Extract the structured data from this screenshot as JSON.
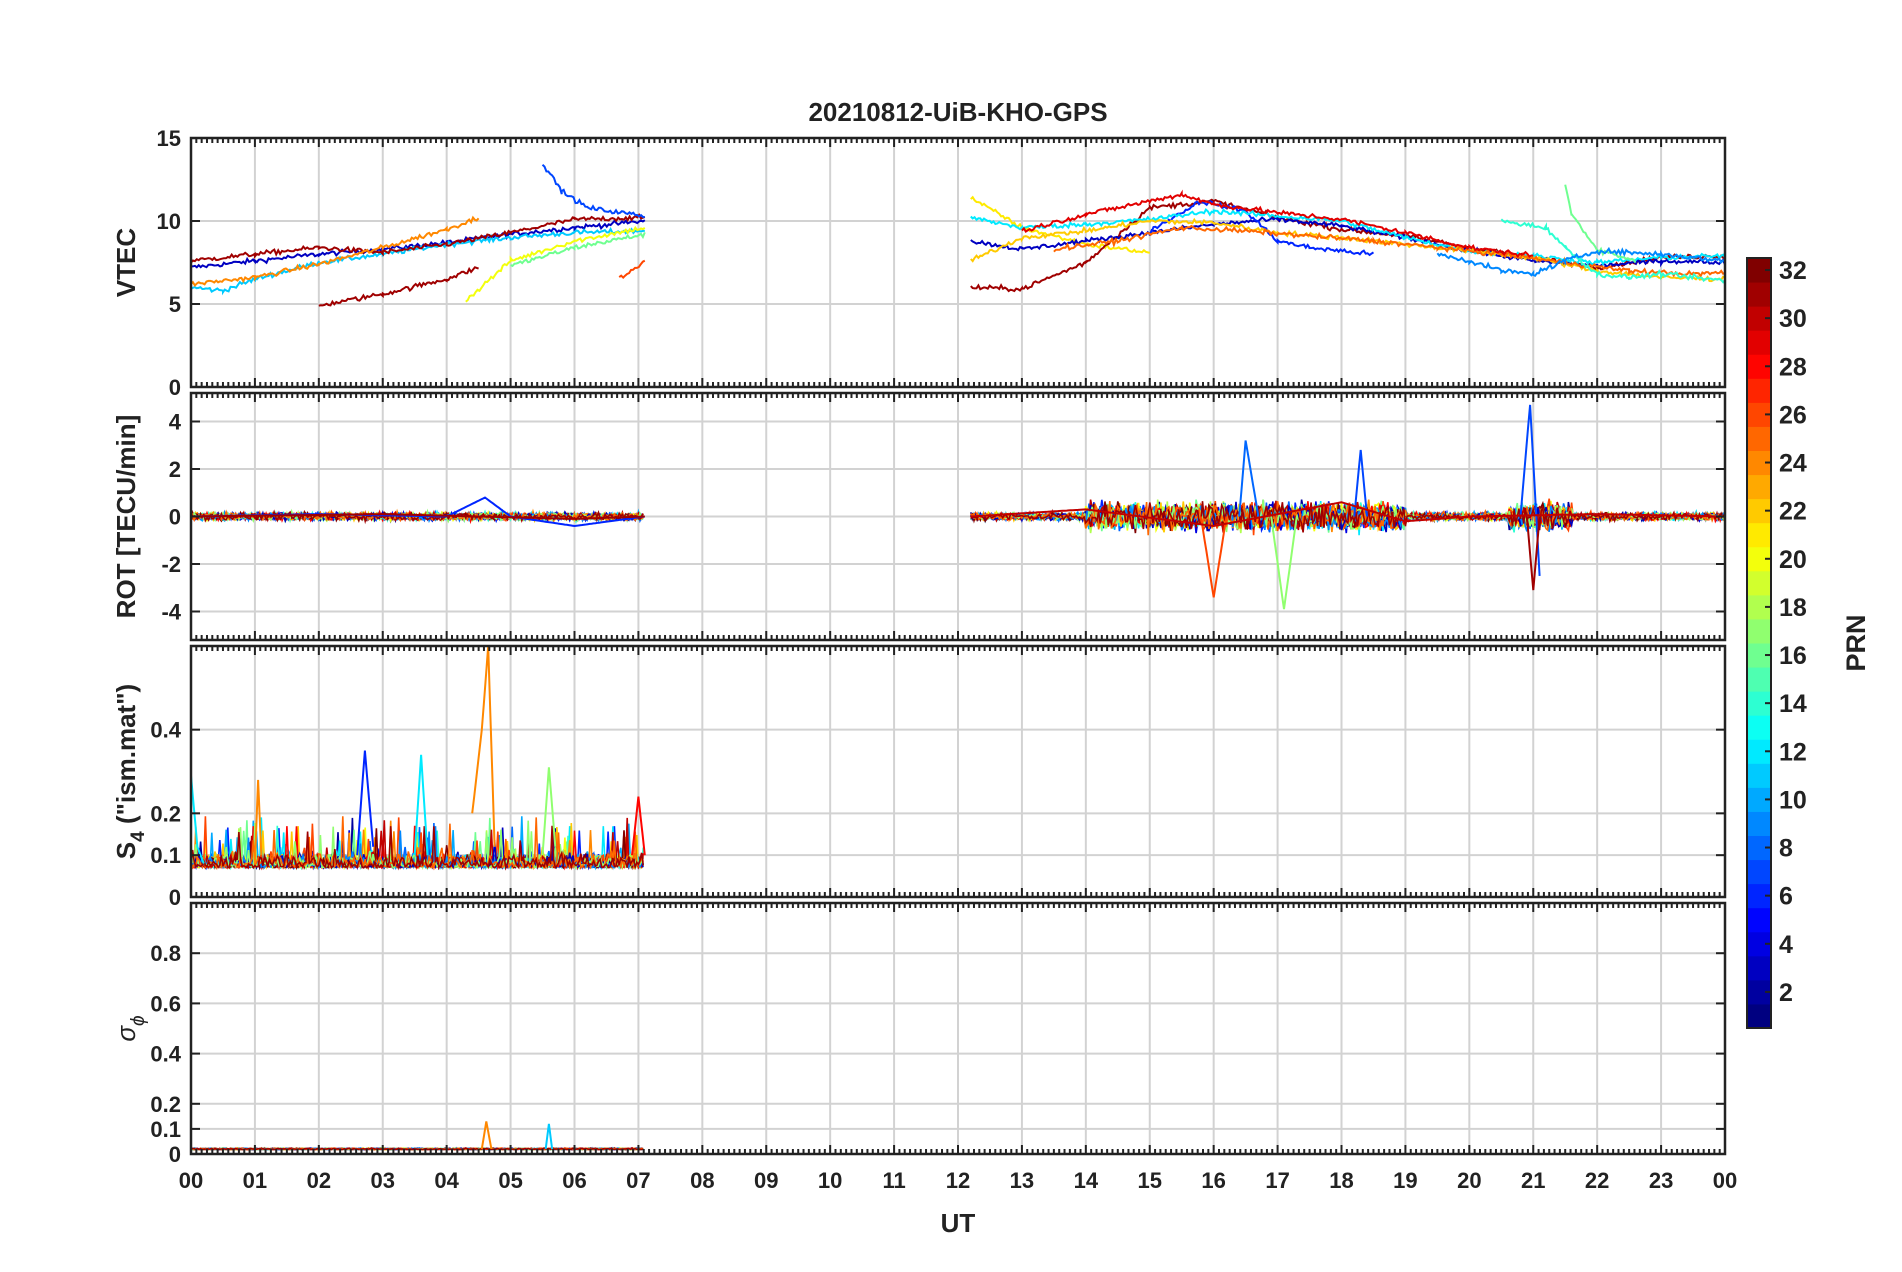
{
  "figure": {
    "title": "20210812-UiB-KHO-GPS",
    "xlabel": "UT",
    "x_ticks": [
      "00",
      "01",
      "02",
      "03",
      "04",
      "05",
      "06",
      "07",
      "08",
      "09",
      "10",
      "11",
      "12",
      "13",
      "14",
      "15",
      "16",
      "17",
      "18",
      "19",
      "20",
      "21",
      "22",
      "23",
      "00"
    ]
  },
  "colorbar": {
    "label": "PRN",
    "colormap": "jet",
    "range": [
      1,
      32
    ],
    "ticks": [
      "2",
      "4",
      "6",
      "8",
      "10",
      "12",
      "14",
      "16",
      "18",
      "20",
      "22",
      "24",
      "26",
      "28",
      "30",
      "32"
    ]
  },
  "chart_data": [
    {
      "type": "line",
      "panel": "vtec",
      "ylabel": "VTEC",
      "ylim": [
        0,
        15
      ],
      "y_ticks": [
        "0",
        "5",
        "10",
        "15"
      ],
      "grid": true,
      "data_coverage_ut_hours": [
        [
          0,
          7.1
        ],
        [
          12.2,
          24
        ]
      ],
      "series": [
        {
          "prn": 3,
          "x": [
            0,
            1,
            2,
            3,
            4,
            5,
            6,
            7.1
          ],
          "y": [
            7.2,
            7.6,
            8.0,
            8.3,
            8.7,
            9.2,
            9.6,
            10.0
          ]
        },
        {
          "prn": 11,
          "x": [
            0,
            0.5,
            1,
            2,
            3,
            4,
            5,
            6,
            7.1
          ],
          "y": [
            6.0,
            5.8,
            6.5,
            7.5,
            8.0,
            8.6,
            9.0,
            9.3,
            9.4
          ]
        },
        {
          "prn": 31,
          "x": [
            0,
            1,
            2,
            3,
            4,
            5,
            6,
            7.1
          ],
          "y": [
            7.6,
            8.0,
            8.4,
            8.1,
            8.6,
            9.3,
            10.1,
            10.2
          ]
        },
        {
          "prn": 31,
          "x": [
            2,
            3,
            4,
            4.5
          ],
          "y": [
            4.9,
            5.6,
            6.5,
            7.2
          ]
        },
        {
          "prn": 24,
          "x": [
            0,
            1,
            2,
            3,
            4,
            4.5
          ],
          "y": [
            6.2,
            6.6,
            7.4,
            8.4,
            9.5,
            10.2
          ]
        },
        {
          "prn": 7,
          "x": [
            5.5,
            5.8,
            6.2,
            7.1
          ],
          "y": [
            13.5,
            11.8,
            10.8,
            10.3
          ]
        },
        {
          "prn": 20,
          "x": [
            4.3,
            5,
            6,
            7.1
          ],
          "y": [
            5.2,
            7.6,
            8.8,
            9.6
          ]
        },
        {
          "prn": 16,
          "x": [
            5,
            6,
            7.1
          ],
          "y": [
            7.3,
            8.4,
            9.2
          ]
        },
        {
          "prn": 26,
          "x": [
            6.7,
            7.1
          ],
          "y": [
            6.5,
            7.6
          ]
        },
        {
          "prn": 21,
          "x": [
            12.2,
            13,
            14,
            15
          ],
          "y": [
            11.4,
            9.6,
            8.6,
            8.1
          ]
        },
        {
          "prn": 31,
          "x": [
            12.2,
            13,
            14,
            15,
            16,
            17,
            18,
            19,
            20,
            21,
            22,
            23,
            24
          ],
          "y": [
            6.0,
            5.9,
            7.5,
            10.8,
            11.2,
            10.2,
            9.5,
            9.1,
            8.4,
            7.8,
            7.2,
            7.8,
            7.9
          ]
        },
        {
          "prn": 3,
          "x": [
            12.2,
            13,
            14,
            15,
            16,
            17,
            18,
            19,
            20,
            21,
            22,
            23,
            24
          ],
          "y": [
            8.8,
            8.3,
            8.8,
            9.3,
            9.8,
            10.1,
            9.7,
            9.0,
            8.2,
            7.6,
            7.3,
            7.6,
            7.5
          ]
        },
        {
          "prn": 6,
          "x": [
            15,
            15.8,
            16.5,
            17,
            17.5,
            18.5
          ],
          "y": [
            9.4,
            11.2,
            10.6,
            8.8,
            8.4,
            8.0
          ]
        },
        {
          "prn": 12,
          "x": [
            12.2,
            13,
            14,
            15,
            16,
            17,
            18,
            19,
            20,
            21,
            22,
            23,
            24
          ],
          "y": [
            10.2,
            9.6,
            9.8,
            10.1,
            10.6,
            10.3,
            10.0,
            9.0,
            8.2,
            7.9,
            7.5,
            7.8,
            7.9
          ]
        },
        {
          "prn": 22,
          "x": [
            12.2,
            13,
            14,
            15,
            16,
            17,
            18,
            19,
            20,
            21,
            22,
            23,
            24
          ],
          "y": [
            7.6,
            9.0,
            9.4,
            10.0,
            9.9,
            9.3,
            9.0,
            8.6,
            8.2,
            7.8,
            7.0,
            6.6,
            6.5
          ]
        },
        {
          "prn": 25,
          "x": [
            13.5,
            14.5,
            15.5,
            16.5,
            17.5,
            18.5,
            19.5,
            20.5,
            21.5,
            22.5,
            23.5,
            24
          ],
          "y": [
            8.3,
            8.8,
            9.6,
            9.4,
            9.1,
            8.8,
            8.4,
            8.0,
            7.5,
            7.0,
            6.8,
            6.9
          ]
        },
        {
          "prn": 14,
          "x": [
            20.5,
            21.2,
            21.5,
            22,
            22.5,
            23,
            24
          ],
          "y": [
            10.0,
            9.6,
            8.4,
            6.8,
            6.6,
            6.8,
            6.4
          ]
        },
        {
          "prn": 16,
          "x": [
            21.5,
            21.6,
            22,
            22.6
          ],
          "y": [
            12.2,
            10.4,
            8.3,
            7.6
          ]
        },
        {
          "prn": 29,
          "x": [
            13,
            14,
            15,
            15.5,
            16,
            17,
            18,
            19,
            20,
            21
          ],
          "y": [
            9.4,
            10.4,
            11.2,
            11.6,
            11.0,
            10.5,
            10.1,
            9.3,
            8.4,
            7.9
          ]
        },
        {
          "prn": 9,
          "x": [
            19.5,
            20,
            20.5,
            21,
            21.5,
            22,
            23,
            24
          ],
          "y": [
            8.0,
            7.6,
            7.0,
            6.8,
            7.6,
            8.2,
            8.0,
            7.6
          ]
        }
      ]
    },
    {
      "type": "line",
      "panel": "rot",
      "ylabel": "ROT [TECU/min]",
      "ylim": [
        -5.2,
        5.2
      ],
      "y_ticks": [
        "-4",
        "-2",
        "0",
        "2",
        "4"
      ],
      "grid": true,
      "data_coverage_ut_hours": [
        [
          0,
          7.1
        ],
        [
          12.2,
          24
        ]
      ],
      "series": [
        {
          "prn": 6,
          "x": [
            0,
            2,
            4,
            4.6,
            5,
            6,
            7.1
          ],
          "y": [
            0,
            0.1,
            0,
            0.8,
            0,
            -0.4,
            0
          ]
        },
        {
          "prn": 31,
          "x": [
            0,
            3,
            6,
            7.1
          ],
          "y": [
            0,
            0.1,
            -0.1,
            0
          ]
        },
        {
          "prn": 26,
          "x": [
            15.8,
            16,
            16.2
          ],
          "y": [
            0,
            -3.4,
            0
          ]
        },
        {
          "prn": 17,
          "x": [
            16.9,
            17.1,
            17.3
          ],
          "y": [
            0,
            -3.9,
            0
          ]
        },
        {
          "prn": 8,
          "x": [
            16.4,
            16.5,
            16.7
          ],
          "y": [
            0,
            3.2,
            0
          ]
        },
        {
          "prn": 7,
          "x": [
            18.2,
            18.3,
            18.4
          ],
          "y": [
            0,
            2.8,
            0
          ]
        },
        {
          "prn": 7,
          "x": [
            20.8,
            20.95,
            21.1
          ],
          "y": [
            0,
            4.7,
            -2.5
          ]
        },
        {
          "prn": 31,
          "x": [
            20.9,
            21.0,
            21.1
          ],
          "y": [
            0,
            -3.1,
            0
          ]
        },
        {
          "prn": 30,
          "x": [
            12.2,
            14,
            16,
            18,
            19,
            20,
            22,
            24
          ],
          "y": [
            0,
            0.3,
            -0.4,
            0.6,
            -0.2,
            0,
            0.1,
            0
          ]
        }
      ]
    },
    {
      "type": "line",
      "panel": "s4",
      "ylabel": "S4 (\"ism.mat\")",
      "ylabel_main": "S",
      "ylabel_sub": "4",
      "ylabel_rest": " (\"ism.mat\")",
      "ylim": [
        0,
        0.6
      ],
      "y_ticks": [
        "0",
        "0.1",
        "0.2",
        "0.4"
      ],
      "grid": true,
      "data_coverage_ut_hours": [
        [
          0,
          7.1
        ]
      ],
      "series": [
        {
          "prn": 24,
          "x": [
            4.4,
            4.55,
            4.65,
            4.75
          ],
          "y": [
            0.2,
            0.4,
            0.6,
            0.12
          ]
        },
        {
          "prn": 6,
          "x": [
            2.6,
            2.72,
            2.85
          ],
          "y": [
            0.1,
            0.35,
            0.12
          ]
        },
        {
          "prn": 12,
          "x": [
            3.5,
            3.6,
            3.7
          ],
          "y": [
            0.1,
            0.34,
            0.1
          ]
        },
        {
          "prn": 17,
          "x": [
            5.5,
            5.6,
            5.7
          ],
          "y": [
            0.1,
            0.31,
            0.12
          ]
        },
        {
          "prn": 28,
          "x": [
            6.9,
            7.0,
            7.1
          ],
          "y": [
            0.1,
            0.24,
            0.1
          ]
        },
        {
          "prn": 12,
          "x": [
            0,
            0.1,
            0.2
          ],
          "y": [
            0.29,
            0.12,
            0.08
          ]
        },
        {
          "prn": 24,
          "x": [
            1.0,
            1.05,
            1.1
          ],
          "y": [
            0.08,
            0.28,
            0.1
          ]
        }
      ]
    },
    {
      "type": "line",
      "panel": "sigma_phi",
      "ylabel": "σ ϕ",
      "ylabel_main": "σ",
      "ylabel_sub": "ϕ",
      "ylim": [
        0,
        1.0
      ],
      "y_ticks": [
        "0",
        "0.1",
        "0.2",
        "0.4",
        "0.6",
        "0.8"
      ],
      "grid": true,
      "data_coverage_ut_hours": [
        [
          0,
          7.1
        ]
      ],
      "series": [
        {
          "prn": 24,
          "x": [
            4.55,
            4.62,
            4.7
          ],
          "y": [
            0.02,
            0.13,
            0.02
          ]
        },
        {
          "prn": 11,
          "x": [
            5.55,
            5.6,
            5.65
          ],
          "y": [
            0.02,
            0.12,
            0.02
          ]
        }
      ]
    }
  ]
}
